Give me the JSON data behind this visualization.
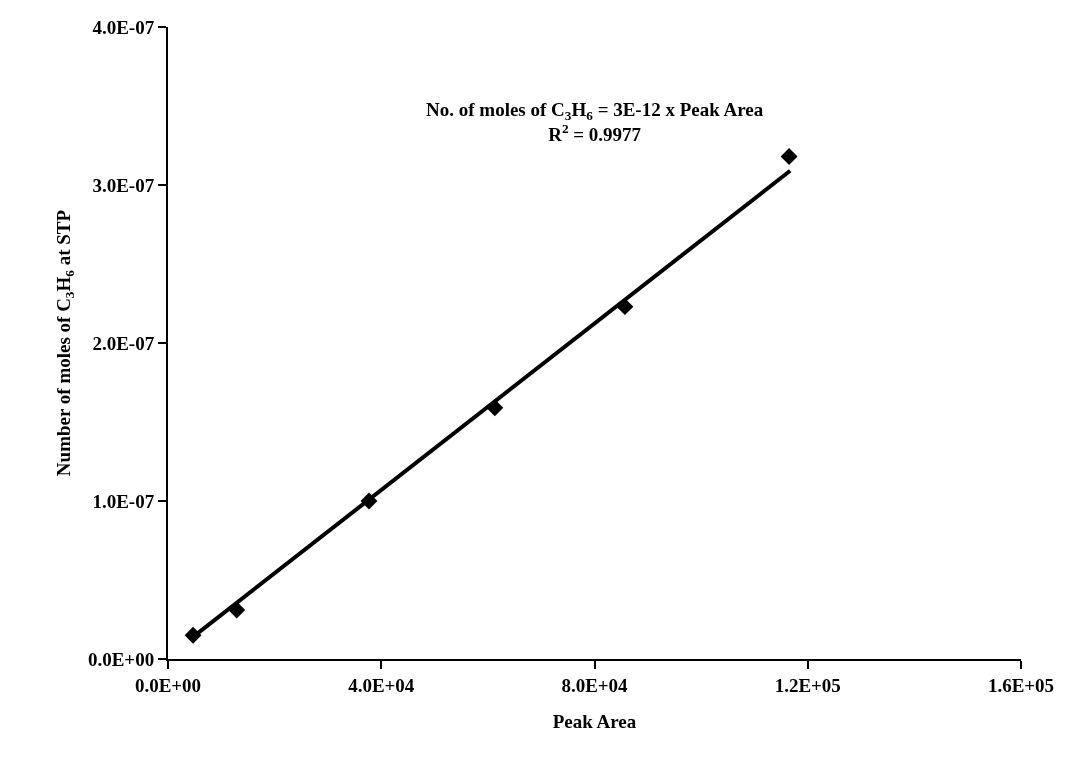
{
  "chart_data": {
    "type": "scatter",
    "xlabel": "Peak Area",
    "ylabel": "Number of moles of C$_{3}$H$_{6}$ at STP",
    "annotations": [
      "No. of moles of C$_{3}$H$_{6}$ = 3E-12 x Peak Area",
      "R$^{2}$ = 0.9977"
    ],
    "x": [
      4700,
      12900,
      37700,
      61300,
      85700,
      116500
    ],
    "series": [
      {
        "color": "#000000",
        "values": [
          1.5e-08,
          3.1e-08,
          1e-07,
          1.59e-07,
          2.23e-07,
          3.18e-07
        ],
        "marker": "diamond"
      },
      {
        "type": "line",
        "color": "#000000",
        "x": [
          4700,
          116700
        ],
        "values": [
          1.4e-08,
          3.09e-07
        ],
        "marker": "none",
        "line_style": "solid"
      }
    ],
    "xlim": [
      0,
      160000
    ],
    "ylim": [
      0,
      4e-07
    ],
    "xticks": [
      {
        "value": 0,
        "label": "0.0E+00"
      },
      {
        "value": 40000,
        "label": "4.0E+04"
      },
      {
        "value": 80000,
        "label": "8.0E+04"
      },
      {
        "value": 120000,
        "label": "1.2E+05"
      },
      {
        "value": 160000,
        "label": "1.6E+05"
      }
    ],
    "yticks": [
      {
        "value": 0,
        "label": "0.0E+00"
      },
      {
        "value": 1e-07,
        "label": "1.0E-07"
      },
      {
        "value": 2e-07,
        "label": "2.0E-07"
      },
      {
        "value": 3e-07,
        "label": "3.0E-07"
      },
      {
        "value": 4e-07,
        "label": "4.0E-07"
      }
    ]
  }
}
